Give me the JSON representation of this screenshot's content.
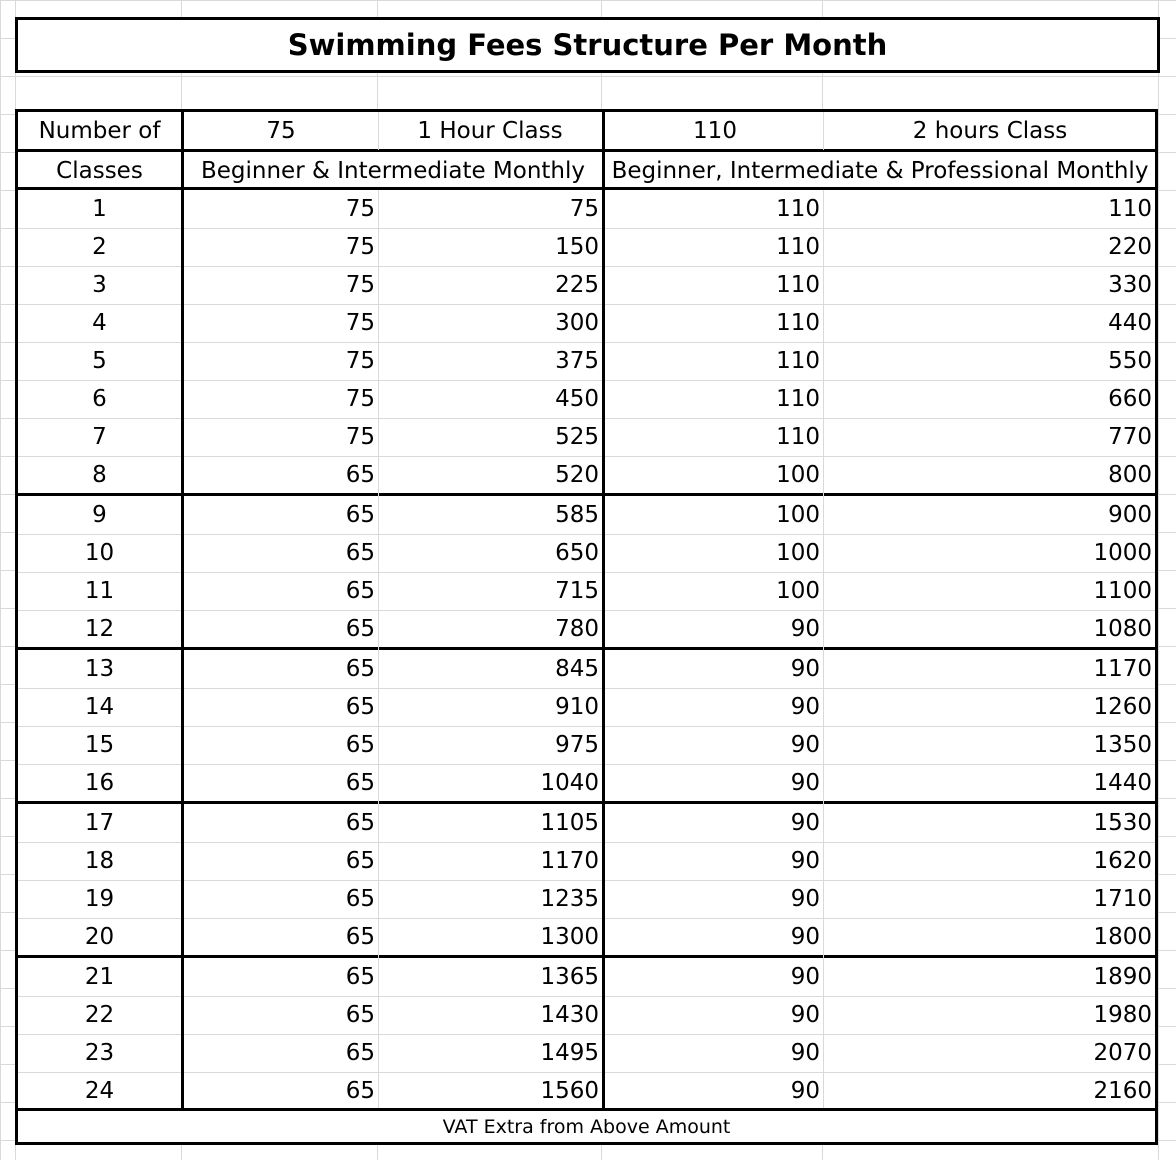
{
  "title": "Swimming Fees Structure Per Month",
  "header": {
    "row1": [
      "Number of",
      "75",
      "1 Hour Class",
      "110",
      "2 hours Class"
    ],
    "row2": {
      "col1": "Classes",
      "col2": "Beginner &  Intermediate Monthly",
      "col3": "Beginner, Intermediate & Professional Monthly"
    }
  },
  "rows": [
    [
      "1",
      "75",
      "75",
      "110",
      "110"
    ],
    [
      "2",
      "75",
      "150",
      "110",
      "220"
    ],
    [
      "3",
      "75",
      "225",
      "110",
      "330"
    ],
    [
      "4",
      "75",
      "300",
      "110",
      "440"
    ],
    [
      "5",
      "75",
      "375",
      "110",
      "550"
    ],
    [
      "6",
      "75",
      "450",
      "110",
      "660"
    ],
    [
      "7",
      "75",
      "525",
      "110",
      "770"
    ],
    [
      "8",
      "65",
      "520",
      "100",
      "800"
    ],
    [
      "9",
      "65",
      "585",
      "100",
      "900"
    ],
    [
      "10",
      "65",
      "650",
      "100",
      "1000"
    ],
    [
      "11",
      "65",
      "715",
      "100",
      "1100"
    ],
    [
      "12",
      "65",
      "780",
      "90",
      "1080"
    ],
    [
      "13",
      "65",
      "845",
      "90",
      "1170"
    ],
    [
      "14",
      "65",
      "910",
      "90",
      "1260"
    ],
    [
      "15",
      "65",
      "975",
      "90",
      "1350"
    ],
    [
      "16",
      "65",
      "1040",
      "90",
      "1440"
    ],
    [
      "17",
      "65",
      "1105",
      "90",
      "1530"
    ],
    [
      "18",
      "65",
      "1170",
      "90",
      "1620"
    ],
    [
      "19",
      "65",
      "1235",
      "90",
      "1710"
    ],
    [
      "20",
      "65",
      "1300",
      "90",
      "1800"
    ],
    [
      "21",
      "65",
      "1365",
      "90",
      "1890"
    ],
    [
      "22",
      "65",
      "1430",
      "90",
      "1980"
    ],
    [
      "23",
      "65",
      "1495",
      "90",
      "2070"
    ],
    [
      "24",
      "65",
      "1560",
      "90",
      "2160"
    ]
  ],
  "footer": "VAT Extra from Above Amount"
}
